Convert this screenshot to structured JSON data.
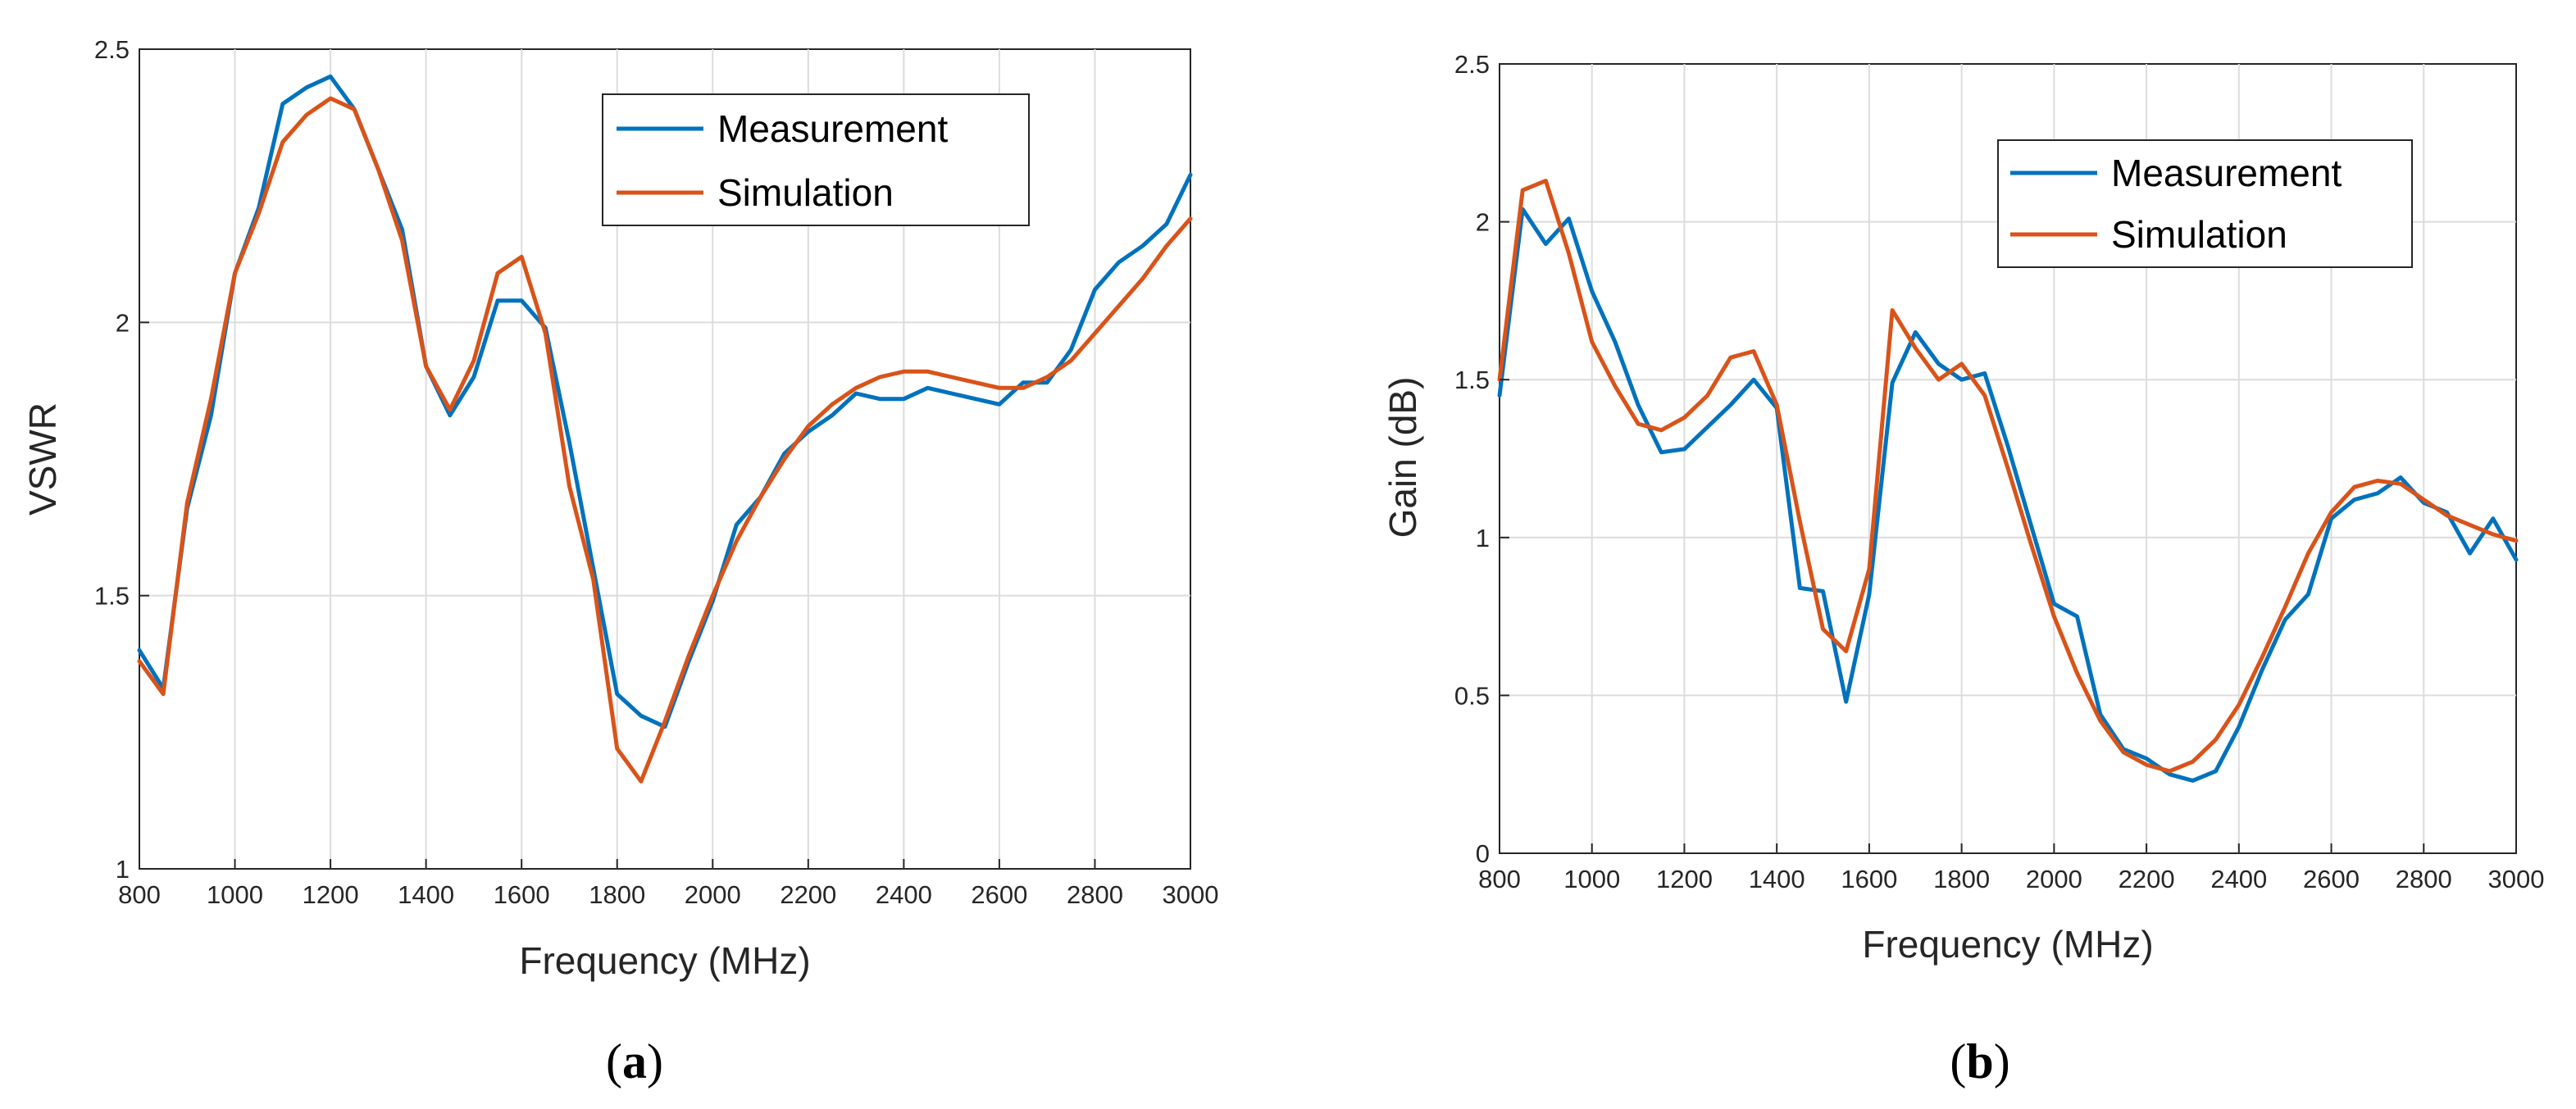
{
  "colors": {
    "measurement": "#0072BD",
    "simulation": "#D95319"
  },
  "chart_data": [
    {
      "type": "line",
      "panel_label": {
        "open": "(",
        "letter": "a",
        "close": ")"
      },
      "xlabel": "Frequency (MHz)",
      "ylabel": "VSWR",
      "xlim": [
        800,
        3000
      ],
      "ylim": [
        1,
        2.5
      ],
      "xticks": [
        800,
        1000,
        1200,
        1400,
        1600,
        1800,
        2000,
        2200,
        2400,
        2600,
        2800,
        3000
      ],
      "yticks": [
        1,
        1.5,
        2,
        2.5
      ],
      "ytick_labels": [
        "1",
        "1.5",
        "2",
        "2.5"
      ],
      "grid": true,
      "legend_position": "top-right",
      "series": [
        {
          "name": "Measurement",
          "x": [
            800,
            850,
            900,
            950,
            1000,
            1050,
            1100,
            1150,
            1200,
            1250,
            1300,
            1350,
            1400,
            1450,
            1500,
            1550,
            1600,
            1650,
            1700,
            1750,
            1800,
            1850,
            1900,
            1950,
            2000,
            2050,
            2100,
            2150,
            2200,
            2250,
            2300,
            2350,
            2400,
            2450,
            2500,
            2550,
            2600,
            2650,
            2700,
            2750,
            2800,
            2850,
            2900,
            2950,
            3000
          ],
          "y": [
            1.4,
            1.33,
            1.66,
            1.83,
            2.09,
            2.21,
            2.4,
            2.43,
            2.45,
            2.39,
            2.28,
            2.17,
            1.92,
            1.83,
            1.9,
            2.04,
            2.04,
            1.99,
            1.78,
            1.55,
            1.32,
            1.28,
            1.26,
            1.38,
            1.49,
            1.63,
            1.68,
            1.76,
            1.8,
            1.83,
            1.87,
            1.86,
            1.86,
            1.88,
            1.87,
            1.86,
            1.85,
            1.89,
            1.89,
            1.95,
            2.06,
            2.11,
            2.14,
            2.18,
            2.27
          ]
        },
        {
          "name": "Simulation",
          "x": [
            800,
            850,
            900,
            950,
            1000,
            1050,
            1100,
            1150,
            1200,
            1250,
            1300,
            1350,
            1400,
            1450,
            1500,
            1550,
            1600,
            1650,
            1700,
            1750,
            1800,
            1850,
            1900,
            1950,
            2000,
            2050,
            2100,
            2150,
            2200,
            2250,
            2300,
            2350,
            2400,
            2450,
            2500,
            2550,
            2600,
            2650,
            2700,
            2750,
            2800,
            2850,
            2900,
            2950,
            3000
          ],
          "y": [
            1.38,
            1.32,
            1.67,
            1.86,
            2.09,
            2.2,
            2.33,
            2.38,
            2.41,
            2.39,
            2.28,
            2.15,
            1.92,
            1.84,
            1.93,
            2.09,
            2.12,
            1.98,
            1.7,
            1.53,
            1.22,
            1.16,
            1.27,
            1.39,
            1.5,
            1.6,
            1.68,
            1.75,
            1.81,
            1.85,
            1.88,
            1.9,
            1.91,
            1.91,
            1.9,
            1.89,
            1.88,
            1.88,
            1.9,
            1.93,
            1.98,
            2.03,
            2.08,
            2.14,
            2.19
          ]
        }
      ]
    },
    {
      "type": "line",
      "panel_label": {
        "open": "(",
        "letter": "b",
        "close": ")"
      },
      "xlabel": "Frequency (MHz)",
      "ylabel": "Gain (dB)",
      "xlim": [
        800,
        3000
      ],
      "ylim": [
        0,
        2.5
      ],
      "xticks": [
        800,
        1000,
        1200,
        1400,
        1600,
        1800,
        2000,
        2200,
        2400,
        2600,
        2800,
        3000
      ],
      "yticks": [
        0,
        0.5,
        1,
        1.5,
        2,
        2.5
      ],
      "ytick_labels": [
        "0",
        "0.5",
        "1",
        "1.5",
        "2",
        "2.5"
      ],
      "grid": true,
      "legend_position": "top-right",
      "series": [
        {
          "name": "Measurement",
          "x": [
            800,
            850,
            900,
            950,
            1000,
            1050,
            1100,
            1150,
            1200,
            1250,
            1300,
            1350,
            1400,
            1450,
            1500,
            1550,
            1600,
            1650,
            1700,
            1750,
            1800,
            1850,
            1900,
            1950,
            2000,
            2050,
            2100,
            2150,
            2200,
            2250,
            2300,
            2350,
            2400,
            2450,
            2500,
            2550,
            2600,
            2650,
            2700,
            2750,
            2800,
            2850,
            2900,
            2950,
            3000
          ],
          "y": [
            1.45,
            2.04,
            1.93,
            2.01,
            1.78,
            1.62,
            1.42,
            1.27,
            1.28,
            1.35,
            1.42,
            1.5,
            1.41,
            0.84,
            0.83,
            0.48,
            0.82,
            1.49,
            1.65,
            1.55,
            1.5,
            1.52,
            1.29,
            1.04,
            0.79,
            0.75,
            0.44,
            0.33,
            0.3,
            0.25,
            0.23,
            0.26,
            0.4,
            0.58,
            0.74,
            0.82,
            1.06,
            1.12,
            1.14,
            1.19,
            1.11,
            1.08,
            0.95,
            1.06,
            0.93
          ]
        },
        {
          "name": "Simulation",
          "x": [
            800,
            850,
            900,
            950,
            1000,
            1050,
            1100,
            1150,
            1200,
            1250,
            1300,
            1350,
            1400,
            1450,
            1500,
            1550,
            1600,
            1650,
            1700,
            1750,
            1800,
            1850,
            1900,
            1950,
            2000,
            2050,
            2100,
            2150,
            2200,
            2250,
            2300,
            2350,
            2400,
            2450,
            2500,
            2550,
            2600,
            2650,
            2700,
            2750,
            2800,
            2850,
            2900,
            2950,
            3000
          ],
          "y": [
            1.5,
            2.1,
            2.13,
            1.9,
            1.62,
            1.48,
            1.36,
            1.34,
            1.38,
            1.45,
            1.57,
            1.59,
            1.42,
            1.05,
            0.71,
            0.64,
            0.9,
            1.72,
            1.6,
            1.5,
            1.55,
            1.45,
            1.22,
            0.98,
            0.75,
            0.57,
            0.42,
            0.32,
            0.28,
            0.26,
            0.29,
            0.36,
            0.47,
            0.62,
            0.78,
            0.95,
            1.08,
            1.16,
            1.18,
            1.17,
            1.12,
            1.07,
            1.04,
            1.01,
            0.99
          ]
        }
      ]
    }
  ]
}
